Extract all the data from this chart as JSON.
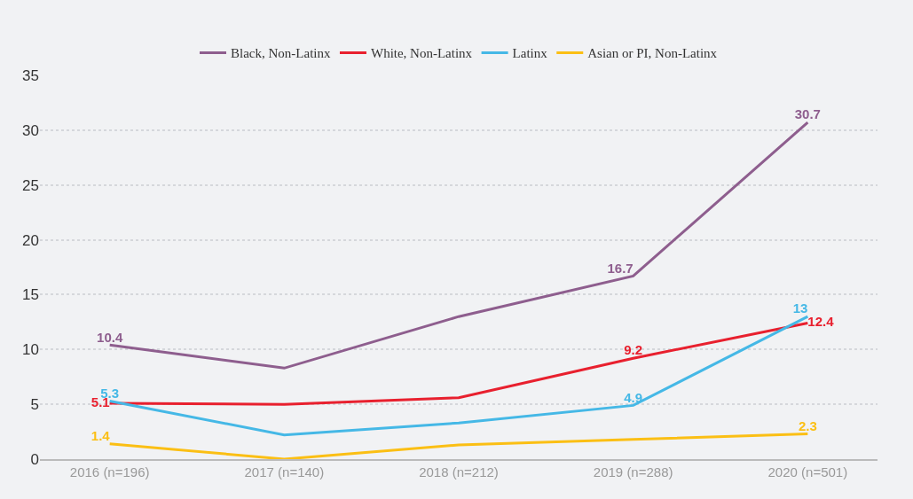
{
  "chart_data": {
    "type": "line",
    "categories": [
      "2016 (n=196)",
      "2017 (n=140)",
      "2018 (n=212)",
      "2019 (n=288)",
      "2020 (n=501)"
    ],
    "series": [
      {
        "name": "Black, Non-Latinx",
        "color": "#8e5e8e",
        "values": [
          10.4,
          8.3,
          13,
          16.7,
          30.7
        ],
        "value_labels": [
          "10.4",
          null,
          null,
          "16.7",
          "30.7"
        ]
      },
      {
        "name": "White, Non-Latinx",
        "color": "#e8202e",
        "values": [
          5.1,
          5.0,
          5.6,
          9.2,
          12.4
        ],
        "value_labels": [
          "5.1",
          null,
          null,
          "9.2",
          "12.4"
        ]
      },
      {
        "name": "Latinx",
        "color": "#45b8e6",
        "values": [
          5.3,
          2.2,
          3.3,
          4.9,
          13
        ],
        "value_labels": [
          "5.3",
          null,
          null,
          "4.9",
          "13"
        ]
      },
      {
        "name": "Asian or PI, Non-Latinx",
        "color": "#fbbf14",
        "values": [
          1.4,
          0,
          1.3,
          1.8,
          2.3
        ],
        "value_labels": [
          "1.4",
          null,
          null,
          null,
          "2.3"
        ]
      }
    ],
    "ylim": [
      0,
      35
    ],
    "yticks": [
      0,
      5,
      10,
      15,
      20,
      25,
      30,
      35
    ],
    "grid": "y",
    "legend": "top",
    "marker": "none",
    "line_style": "solid"
  }
}
